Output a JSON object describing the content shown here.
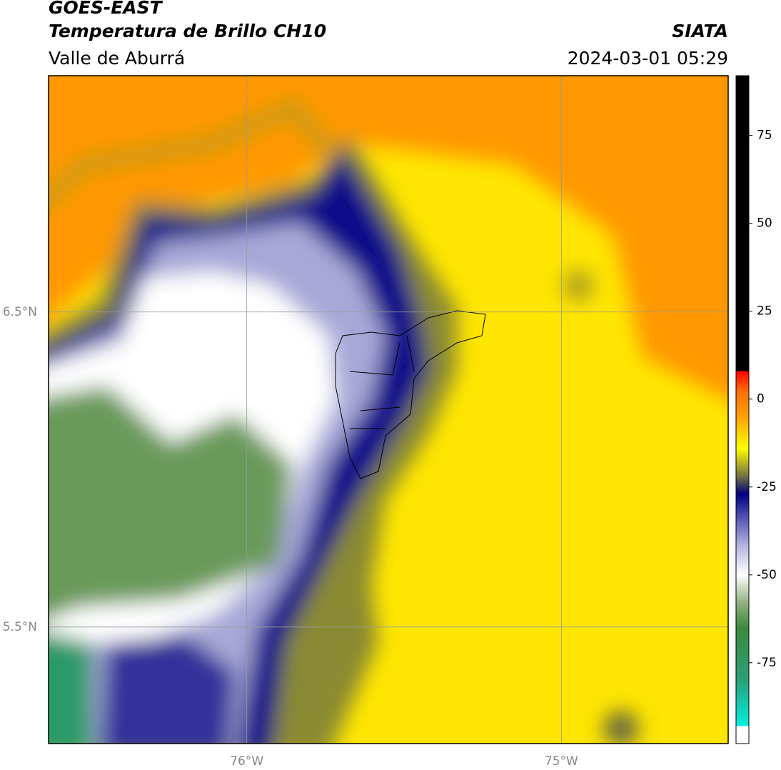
{
  "header": {
    "title": "GOES-EAST",
    "subtitle": "Temperatura de Brillo CH10",
    "region": "Valle de Aburrá",
    "source": "SIATA",
    "datetime": "2024-03-01 05:29"
  },
  "map": {
    "xlim": [
      -76.63,
      -74.47
    ],
    "ylim": [
      5.13,
      7.25
    ],
    "xticks": [
      {
        "value": -76,
        "label": "76°W"
      },
      {
        "value": -75,
        "label": "75°W"
      }
    ],
    "yticks": [
      {
        "value": 5.5,
        "label": "5.5°N"
      },
      {
        "value": 6.5,
        "label": "6.5°N"
      }
    ],
    "grid": true
  },
  "colorbar": {
    "lim": [
      -98,
      92
    ],
    "ticks": [
      -75,
      -50,
      -25,
      0,
      25,
      50,
      75
    ],
    "stops": [
      {
        "value": -98,
        "color": "#ffffff"
      },
      {
        "value": -93,
        "color": "#ffffff"
      },
      {
        "value": -93,
        "color": "#00f0e0"
      },
      {
        "value": -80,
        "color": "#2aa07a"
      },
      {
        "value": -65,
        "color": "#3c8a3a"
      },
      {
        "value": -58,
        "color": "#8fb080"
      },
      {
        "value": -50,
        "color": "#ffffff"
      },
      {
        "value": -42,
        "color": "#b8b8e0"
      },
      {
        "value": -33,
        "color": "#4a4ab0"
      },
      {
        "value": -27,
        "color": "#000080"
      },
      {
        "value": -22,
        "color": "#707040"
      },
      {
        "value": -14,
        "color": "#ffff00"
      },
      {
        "value": -5,
        "color": "#ffa000"
      },
      {
        "value": 2,
        "color": "#ff7000"
      },
      {
        "value": 8,
        "color": "#ff0000"
      },
      {
        "value": 8,
        "color": "#000000"
      },
      {
        "value": 92,
        "color": "#000000"
      }
    ]
  }
}
